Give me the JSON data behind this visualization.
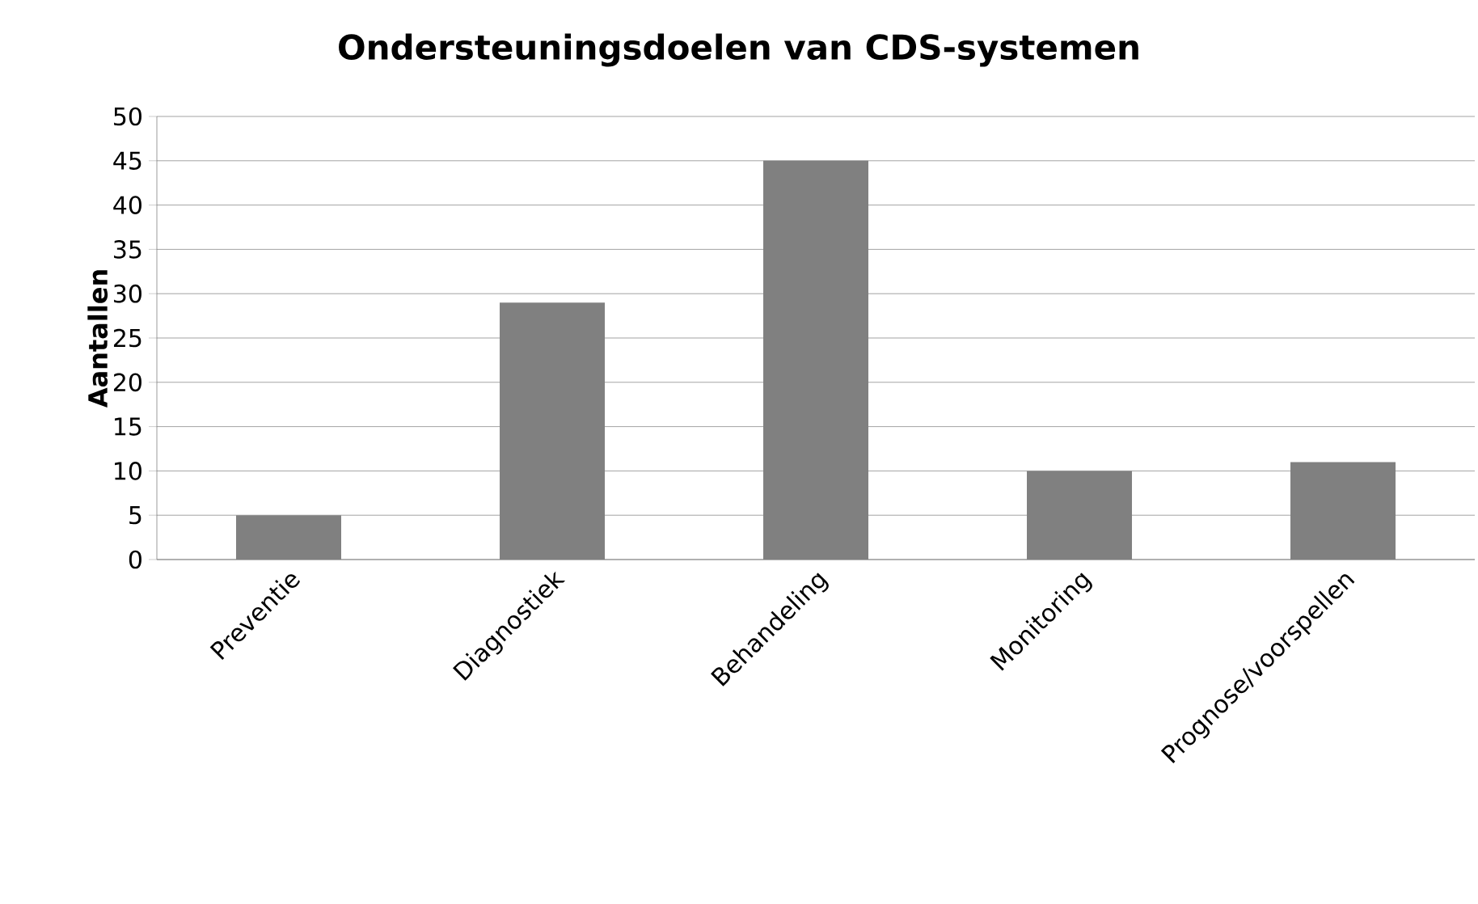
{
  "chart_data": {
    "type": "bar",
    "title": "Ondersteuningsdoelen van CDS-systemen",
    "ylabel": "Aantallen",
    "categories": [
      "Preventie",
      "Diagnostiek",
      "Behandeling",
      "Monitoring",
      "Prognose/voorspellen"
    ],
    "values": [
      5,
      29,
      45,
      10,
      11
    ],
    "color": "#808080",
    "ylim": [
      0,
      50
    ],
    "yticks": [
      0,
      5,
      10,
      15,
      20,
      25,
      30,
      35,
      40,
      45,
      50
    ],
    "grid": "y"
  }
}
